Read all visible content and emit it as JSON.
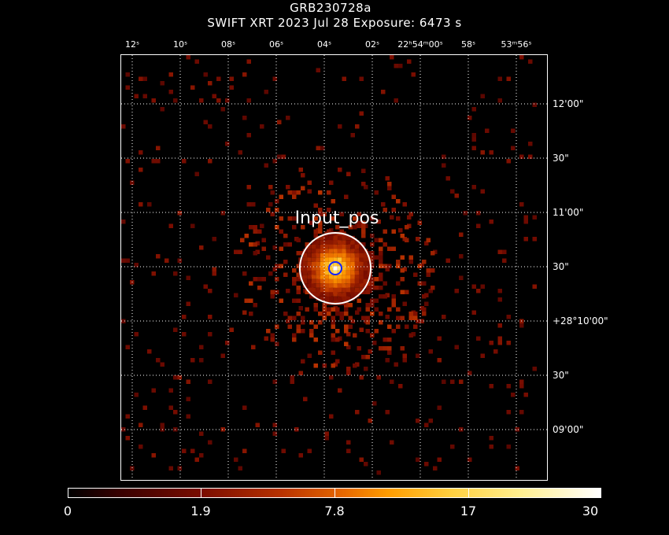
{
  "header": {
    "object": "GRB230728a",
    "subtitle": "SWIFT XRT   2023 Jul 28    Exposure: 6473 s"
  },
  "ra_labels": [
    {
      "text": "12ˢ"
    },
    {
      "text": "10ˢ"
    },
    {
      "text": "08ˢ"
    },
    {
      "text": "06ˢ"
    },
    {
      "text": "04ˢ"
    },
    {
      "text": "02ˢ"
    },
    {
      "text": "22ʰ54ᵐ00ˢ"
    },
    {
      "text": "58ˢ"
    },
    {
      "text": "53ᵐ56ˢ"
    }
  ],
  "dec_labels": [
    {
      "text": "12'00\""
    },
    {
      "text": "30\""
    },
    {
      "text": "11'00\""
    },
    {
      "text": "30\""
    },
    {
      "text": "+28°10'00\""
    },
    {
      "text": "30\""
    },
    {
      "text": "09'00\""
    }
  ],
  "source": {
    "label": "Input_pos"
  },
  "colorbar": {
    "scale_min": "0",
    "ticks": [
      "1.9",
      "7.8",
      "17"
    ],
    "scale_max": "30"
  },
  "colors": {
    "background": "#000000",
    "grid": "#ffffff",
    "marker": "#1020ff"
  }
}
